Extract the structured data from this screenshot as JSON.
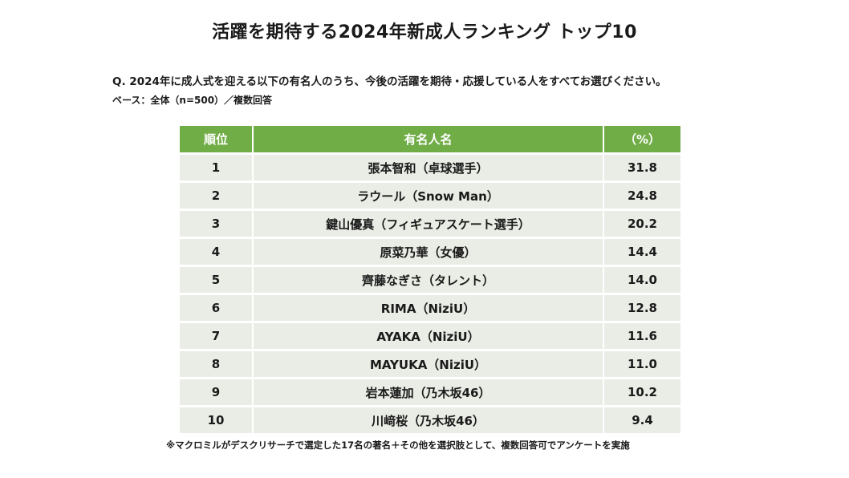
{
  "title": "活躍を期待する2024年新成人ランキング トップ10",
  "question": "Q. 2024年に成人式を迎える以下の有名人のうち、今後の活躍を期待・応援している人をすべてお選びください。",
  "base_note": "ベース：全体（n=500）／複数回答",
  "footnote": "※マクロミルがデスクリサーチで選定した17名の著名＋その他を選択肢として、複数回答可でアンケートを実施",
  "colors": {
    "header_bg": "#70ad47",
    "row_bg": "#e9ede5"
  },
  "chart_data": {
    "type": "table",
    "title": "活躍を期待する2024年新成人ランキング トップ10",
    "columns": [
      "順位",
      "有名人名",
      "（%）"
    ],
    "rows": [
      {
        "rank": "1",
        "name": "張本智和（卓球選手）",
        "value": "31.8"
      },
      {
        "rank": "2",
        "name": "ラウール（Snow Man）",
        "value": "24.8"
      },
      {
        "rank": "3",
        "name": "鍵山優真（フィギュアスケート選手）",
        "value": "20.2"
      },
      {
        "rank": "4",
        "name": "原菜乃華（女優）",
        "value": "14.4"
      },
      {
        "rank": "5",
        "name": "齊藤なぎさ（タレント）",
        "value": "14.0"
      },
      {
        "rank": "6",
        "name": "RIMA（NiziU）",
        "value": "12.8"
      },
      {
        "rank": "7",
        "name": "AYAKA（NiziU）",
        "value": "11.6"
      },
      {
        "rank": "8",
        "name": "MAYUKA（NiziU）",
        "value": "11.0"
      },
      {
        "rank": "9",
        "name": "岩本蓮加（乃木坂46）",
        "value": "10.2"
      },
      {
        "rank": "10",
        "name": "川﨑桜（乃木坂46）",
        "value": "9.4"
      }
    ]
  }
}
